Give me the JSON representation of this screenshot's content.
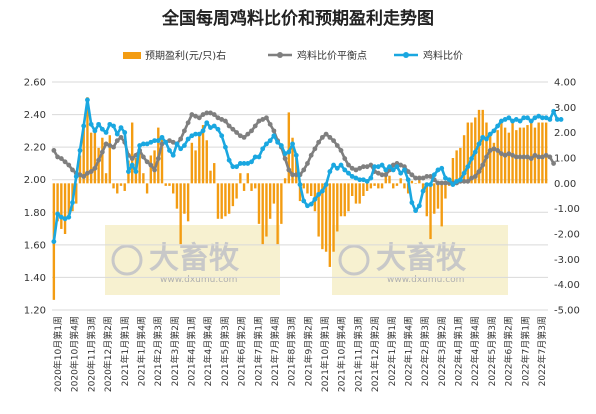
{
  "chart_data": {
    "type": "bar+line",
    "title": "全国每周鸡料比价和预期盈利走势图",
    "legend": [
      {
        "name": "预期盈利(元/只)右",
        "color": "#f39c12",
        "marker": "bar"
      },
      {
        "name": "鸡料比价平衡点",
        "color": "#7f7f7f",
        "marker": "line-dot"
      },
      {
        "name": "鸡料比价",
        "color": "#1aa7e0",
        "marker": "line-dot"
      }
    ],
    "left_axis": {
      "min": 1.2,
      "max": 2.6,
      "ticks": [
        "1.20",
        "1.40",
        "1.60",
        "1.80",
        "2.00",
        "2.20",
        "2.40",
        "2.60"
      ]
    },
    "right_axis": {
      "min": -5,
      "max": 4,
      "ticks": [
        "-5.00",
        "-4.00",
        "-3.00",
        "-2.00",
        "-1.00",
        "0.00",
        "1.00",
        "2.00",
        "3.00",
        "4.00"
      ]
    },
    "x_tick_labels": [
      "2020年10月第1周",
      "2020年10月第4周",
      "2020年11月第3周",
      "2020年12月第2周",
      "2021年1月第1周",
      "2021年1月第4周",
      "2021年2月第3周",
      "2021年3月第2周",
      "2021年4月第1周",
      "2021年4月第4周",
      "2021年5月第3周",
      "2021年6月第2周",
      "2021年7月第1周",
      "2021年7月第4周",
      "2021年8月第3周",
      "2021年9月第2周",
      "2021年10月第1周",
      "2021年10月第4周",
      "2021年11月第3周",
      "2021年12月第2周",
      "2022年1月第1周",
      "2022年1月第4周",
      "2022年2月第3周",
      "2022年3月第2周",
      "2022年4月第1周",
      "2022年4月第4周",
      "2022年5月第3周",
      "2022年6月第2周",
      "2022年7月第1周",
      "2022年7月第3周"
    ],
    "series": [
      {
        "name": "预期盈利(元/只)右",
        "type": "bar",
        "axis": "right",
        "values": [
          -4.6,
          -1.5,
          -1.8,
          -2.0,
          -1.3,
          -1.1,
          -0.8,
          1.1,
          2.3,
          3.4,
          2.0,
          2.2,
          1.4,
          1.8,
          0.4,
          1.9,
          -0.2,
          -0.4,
          -0.1,
          -0.3,
          0.9,
          2.4,
          1.0,
          1.3,
          0.4,
          -0.4,
          1.1,
          1.3,
          2.2,
          1.8,
          -0.1,
          -0.1,
          -0.4,
          -1.0,
          -2.4,
          -1.2,
          -1.5,
          1.6,
          1.3,
          2.0,
          2.3,
          1.7,
          0.5,
          0.8,
          -1.4,
          -1.4,
          -1.3,
          -1.2,
          -0.9,
          -0.6,
          0.4,
          -0.3,
          0.4,
          -0.3,
          -0.2,
          -1.6,
          -2.4,
          -2.1,
          -1.4,
          -0.8,
          -2.4,
          -1.6,
          0.2,
          2.8,
          1.8,
          1.0,
          -0.7,
          -0.2,
          -0.4,
          -0.5,
          -1.1,
          -2.1,
          -2.6,
          -2.7,
          -3.3,
          -2.7,
          -1.9,
          -1.3,
          -1.3,
          -1.1,
          -0.5,
          -0.8,
          -0.8,
          -0.5,
          -0.3,
          -0.2,
          -0.1,
          -0.2,
          -0.2,
          0.5,
          0.3,
          -0.2,
          -0.1,
          0.2,
          -0.2,
          -0.4,
          0.1,
          0.0,
          0.3,
          -0.3,
          -1.3,
          -2.2,
          -1.2,
          -1.0,
          -1.7,
          -0.6,
          -0.1,
          1.0,
          1.3,
          1.4,
          1.9,
          2.4,
          2.4,
          2.6,
          2.9,
          2.9,
          2.4,
          2.0,
          1.6,
          2.1,
          2.5,
          2.2,
          2.0,
          2.4,
          2.1,
          2.2,
          2.2,
          2.3,
          2.5,
          2.2,
          2.4,
          2.4,
          2.4
        ]
      },
      {
        "name": "鸡料比价平衡点",
        "type": "line",
        "axis": "left",
        "values": [
          2.18,
          2.14,
          2.13,
          2.11,
          2.09,
          2.06,
          2.04,
          2.03,
          2.02,
          2.04,
          2.05,
          2.07,
          2.12,
          2.17,
          2.22,
          2.21,
          2.2,
          2.24,
          2.26,
          2.23,
          2.15,
          2.13,
          2.15,
          2.18,
          2.14,
          2.11,
          2.09,
          2.06,
          2.13,
          2.22,
          2.23,
          2.24,
          2.23,
          2.22,
          2.25,
          2.3,
          2.35,
          2.4,
          2.39,
          2.38,
          2.4,
          2.41,
          2.41,
          2.4,
          2.38,
          2.37,
          2.36,
          2.33,
          2.31,
          2.29,
          2.27,
          2.26,
          2.28,
          2.3,
          2.33,
          2.36,
          2.37,
          2.38,
          2.34,
          2.3,
          2.24,
          2.2,
          2.13,
          2.06,
          2.03,
          2.03,
          2.03,
          2.06,
          2.1,
          2.15,
          2.19,
          2.23,
          2.26,
          2.28,
          2.26,
          2.24,
          2.21,
          2.18,
          2.13,
          2.09,
          2.07,
          2.06,
          2.07,
          2.08,
          2.08,
          2.09,
          2.05,
          2.04,
          2.03,
          2.03,
          2.06,
          2.09,
          2.1,
          2.09,
          2.08,
          2.05,
          2.03,
          2.01,
          2.01,
          2.01,
          2.02,
          2.02,
          2.0,
          1.98,
          1.98,
          1.98,
          1.98,
          1.98,
          1.98,
          1.99,
          1.99,
          1.99,
          2.01,
          2.02,
          2.05,
          2.09,
          2.14,
          2.18,
          2.19,
          2.18,
          2.16,
          2.15,
          2.16,
          2.15,
          2.14,
          2.14,
          2.14,
          2.14,
          2.13,
          2.15,
          2.14,
          2.14,
          2.15,
          2.14,
          2.1
        ]
      },
      {
        "name": "鸡料比价",
        "type": "line",
        "axis": "left",
        "values": [
          1.62,
          1.79,
          1.77,
          1.76,
          1.77,
          1.86,
          2.02,
          2.18,
          2.33,
          2.49,
          2.34,
          2.3,
          2.34,
          2.31,
          2.29,
          2.34,
          2.33,
          2.28,
          2.32,
          2.29,
          2.05,
          2.09,
          2.05,
          2.21,
          2.22,
          2.22,
          2.23,
          2.24,
          2.24,
          2.26,
          2.23,
          2.18,
          2.15,
          2.22,
          2.19,
          2.21,
          2.25,
          2.27,
          2.28,
          2.28,
          2.3,
          2.35,
          2.32,
          2.33,
          2.31,
          2.27,
          2.2,
          2.12,
          2.08,
          2.08,
          2.1,
          2.1,
          2.1,
          2.11,
          2.14,
          2.14,
          2.19,
          2.22,
          2.24,
          2.27,
          2.23,
          2.21,
          2.16,
          2.17,
          2.22,
          2.15,
          1.97,
          1.87,
          1.84,
          1.85,
          1.88,
          1.91,
          1.93,
          1.97,
          2.05,
          2.09,
          2.07,
          2.09,
          2.06,
          2.04,
          2.02,
          2.01,
          2.0,
          2.0,
          1.99,
          2.01,
          2.08,
          2.08,
          2.09,
          2.06,
          2.08,
          2.06,
          2.08,
          2.04,
          2.06,
          2.0,
          1.86,
          1.81,
          1.84,
          1.93,
          1.97,
          1.97,
          2.03,
          2.06,
          2.07,
          2.01,
          2.0,
          1.97,
          1.99,
          2.0,
          2.04,
          2.08,
          2.13,
          2.17,
          2.22,
          2.26,
          2.25,
          2.28,
          2.3,
          2.33,
          2.36,
          2.37,
          2.38,
          2.36,
          2.37,
          2.36,
          2.38,
          2.38,
          2.36,
          2.38,
          2.39,
          2.38,
          2.38,
          2.37,
          2.42,
          2.37,
          2.37
        ]
      }
    ],
    "watermark": {
      "text": "大畜牧",
      "sub": "www.dxumu.com"
    }
  }
}
